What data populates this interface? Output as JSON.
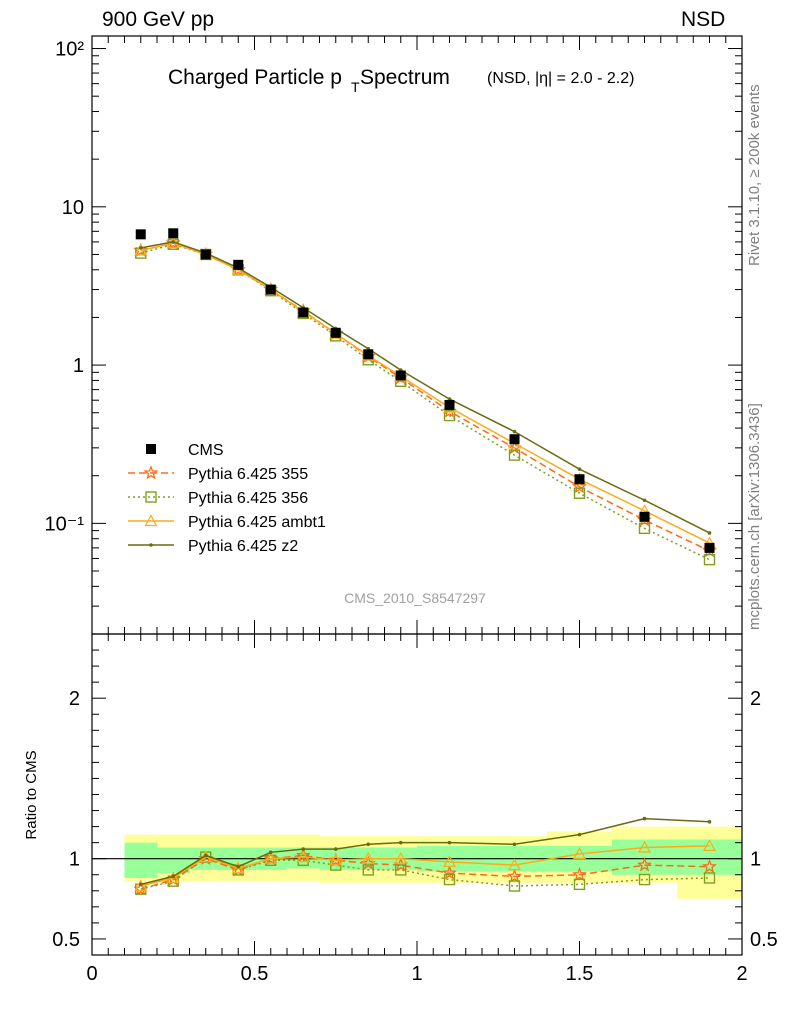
{
  "header": {
    "left": "900 GeV pp",
    "right": "NSD"
  },
  "side_labels": {
    "top": "Rivet 3.1.10, ≥ 200k events",
    "bottom": "mcplots.cern.ch [arXiv:1306.3436]"
  },
  "chart_data": [
    {
      "type": "line",
      "title": "Charged Particle p",
      "title_sub": "T",
      "title_rest": " Spectrum",
      "subtitle": "(NSD, |η| = 2.0 - 2.2)",
      "watermark": "CMS_2010_S8547297",
      "xlim": [
        0,
        2
      ],
      "ylim": [
        0.02,
        120
      ],
      "yscale": "log",
      "y_tick_labels": [
        "10⁻¹",
        "1",
        "10",
        "10²"
      ],
      "y_tick_values": [
        0.1,
        1,
        10,
        100
      ],
      "legend_position": "bottom-left",
      "x": [
        0.15,
        0.25,
        0.35,
        0.45,
        0.55,
        0.65,
        0.75,
        0.85,
        0.95,
        1.1,
        1.3,
        1.5,
        1.7,
        1.9
      ],
      "data": {
        "name": "CMS",
        "values": [
          6.7,
          6.8,
          5.0,
          4.3,
          3.0,
          2.15,
          1.6,
          1.17,
          0.86,
          0.56,
          0.34,
          0.19,
          0.11,
          0.07
        ]
      },
      "series": [
        {
          "name": "Pythia 6.425 355",
          "color": "#ff6a1a",
          "marker": "star",
          "dash": "7,4",
          "values": [
            5.3,
            5.9,
            5.0,
            4.0,
            3.0,
            2.2,
            1.58,
            1.13,
            0.83,
            0.51,
            0.3,
            0.17,
            0.105,
            0.067
          ]
        },
        {
          "name": "Pythia 6.425 356",
          "color": "#7f9f1f",
          "marker": "square",
          "dash": "2,3",
          "values": [
            5.1,
            5.8,
            5.0,
            4.0,
            2.95,
            2.12,
            1.53,
            1.08,
            0.79,
            0.48,
            0.27,
            0.155,
            0.093,
            0.059
          ]
        },
        {
          "name": "Pythia 6.425 ambt1",
          "color": "#ffaa1a",
          "marker": "triangle",
          "dash": "",
          "values": [
            5.3,
            5.9,
            5.0,
            4.0,
            3.0,
            2.18,
            1.58,
            1.15,
            0.85,
            0.54,
            0.32,
            0.19,
            0.12,
            0.075
          ]
        },
        {
          "name": "Pythia 6.425 z2",
          "color": "#6b6b10",
          "marker": "dot",
          "dash": "",
          "values": [
            5.5,
            6.0,
            5.1,
            4.1,
            3.1,
            2.3,
            1.7,
            1.27,
            0.93,
            0.61,
            0.38,
            0.22,
            0.14,
            0.087
          ]
        }
      ]
    },
    {
      "type": "line",
      "ylabel": "Ratio to CMS",
      "xlim": [
        0,
        2
      ],
      "ylim": [
        0.4,
        2.4
      ],
      "y_tick_values": [
        0.5,
        1,
        2
      ],
      "y_tick_labels": [
        "0.5",
        "1",
        "2"
      ],
      "x_tick_values": [
        0,
        0.5,
        1,
        1.5,
        2
      ],
      "x_tick_labels": [
        "0",
        "0.5",
        "1",
        "1.5",
        "2"
      ],
      "band_edges": [
        0.1,
        0.2,
        0.3,
        0.4,
        0.5,
        0.6,
        0.7,
        0.8,
        0.9,
        1.0,
        1.2,
        1.4,
        1.6,
        1.8,
        2.0
      ],
      "band_inner_low": [
        0.88,
        0.91,
        0.93,
        0.93,
        0.93,
        0.94,
        0.93,
        0.93,
        0.93,
        0.92,
        0.92,
        0.92,
        0.9,
        0.9
      ],
      "band_inner_high": [
        1.1,
        1.07,
        1.07,
        1.07,
        1.07,
        1.07,
        1.07,
        1.07,
        1.07,
        1.08,
        1.08,
        1.08,
        1.12,
        1.12
      ],
      "band_outer_low": [
        0.86,
        0.86,
        0.86,
        0.86,
        0.86,
        0.86,
        0.85,
        0.85,
        0.85,
        0.85,
        0.85,
        0.85,
        0.85,
        0.75
      ],
      "band_outer_high": [
        1.15,
        1.15,
        1.15,
        1.15,
        1.15,
        1.15,
        1.14,
        1.14,
        1.14,
        1.14,
        1.14,
        1.17,
        1.2,
        1.2
      ],
      "x": [
        0.15,
        0.25,
        0.35,
        0.45,
        0.55,
        0.65,
        0.75,
        0.85,
        0.95,
        1.1,
        1.3,
        1.5,
        1.7,
        1.9
      ],
      "series": [
        {
          "name": "Pythia 6.425 355",
          "values": [
            0.81,
            0.87,
            1.0,
            0.93,
            1.0,
            1.02,
            0.99,
            0.97,
            0.96,
            0.91,
            0.89,
            0.9,
            0.96,
            0.95
          ]
        },
        {
          "name": "Pythia 6.425 356",
          "values": [
            0.81,
            0.86,
            1.01,
            0.93,
            0.99,
            0.99,
            0.96,
            0.93,
            0.93,
            0.87,
            0.83,
            0.84,
            0.87,
            0.88
          ]
        },
        {
          "name": "Pythia 6.425 ambt1",
          "values": [
            0.83,
            0.88,
            1.01,
            0.94,
            1.0,
            1.01,
            0.99,
            1.0,
            1.0,
            0.98,
            0.96,
            1.03,
            1.07,
            1.08
          ]
        },
        {
          "name": "Pythia 6.425 z2",
          "values": [
            0.84,
            0.89,
            1.02,
            0.95,
            1.04,
            1.06,
            1.06,
            1.09,
            1.1,
            1.1,
            1.09,
            1.15,
            1.25,
            1.23
          ]
        }
      ]
    }
  ]
}
